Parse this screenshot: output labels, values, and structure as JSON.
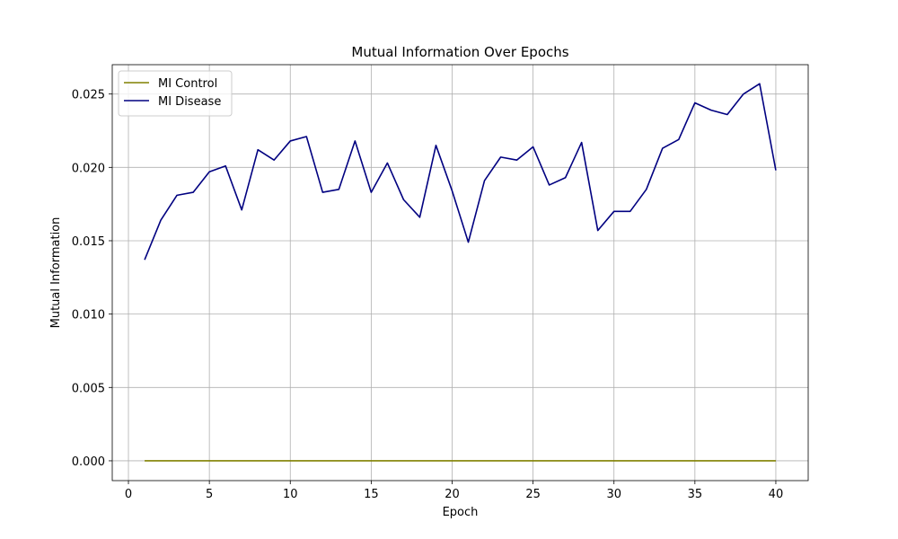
{
  "chart_data": {
    "type": "line",
    "title": "Mutual Information Over Epochs",
    "xlabel": "Epoch",
    "ylabel": "Mutual Information",
    "xlim": [
      -1,
      42
    ],
    "ylim": [
      -0.00135,
      0.027
    ],
    "xticks": [
      0,
      5,
      10,
      15,
      20,
      25,
      30,
      35,
      40
    ],
    "yticks": [
      0.0,
      0.005,
      0.01,
      0.015,
      0.02,
      0.025
    ],
    "ytick_labels": [
      "0.000",
      "0.005",
      "0.010",
      "0.015",
      "0.020",
      "0.025"
    ],
    "grid": true,
    "legend_position": "top-left",
    "x": [
      1,
      2,
      3,
      4,
      5,
      6,
      7,
      8,
      9,
      10,
      11,
      12,
      13,
      14,
      15,
      16,
      17,
      18,
      19,
      20,
      21,
      22,
      23,
      24,
      25,
      26,
      27,
      28,
      29,
      30,
      31,
      32,
      33,
      34,
      35,
      36,
      37,
      38,
      39,
      40
    ],
    "series": [
      {
        "name": "MI Control",
        "color": "#808000",
        "values": [
          0,
          0,
          0,
          0,
          0,
          0,
          0,
          0,
          0,
          0,
          0,
          0,
          0,
          0,
          0,
          0,
          0,
          0,
          0,
          0,
          0,
          0,
          0,
          0,
          0,
          0,
          0,
          0,
          0,
          0,
          0,
          0,
          0,
          0,
          0,
          0,
          0,
          0,
          0,
          0
        ]
      },
      {
        "name": "MI Disease",
        "color": "#000080",
        "values": [
          0.0137,
          0.0164,
          0.0181,
          0.0183,
          0.0197,
          0.0201,
          0.0171,
          0.0212,
          0.0205,
          0.0218,
          0.0221,
          0.0183,
          0.0185,
          0.0218,
          0.0183,
          0.0203,
          0.0178,
          0.0166,
          0.0215,
          0.0184,
          0.0149,
          0.0191,
          0.0207,
          0.0205,
          0.0214,
          0.0188,
          0.0193,
          0.0217,
          0.0157,
          0.017,
          0.017,
          0.0185,
          0.0213,
          0.0219,
          0.0244,
          0.0239,
          0.0236,
          0.025,
          0.0257,
          0.0198
        ]
      }
    ]
  }
}
